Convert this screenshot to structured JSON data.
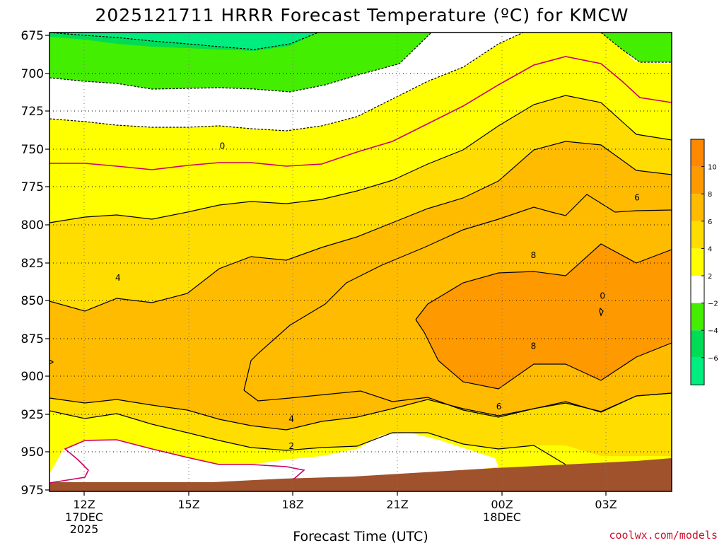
{
  "chart_data": {
    "type": "time-height contour (filled)",
    "title": "2025121711 HRRR Forecast Temperature (ºC) for KMCW",
    "xlabel": "Forecast Time (UTC)",
    "ylabel": "",
    "x_ticks": [
      {
        "label": "12Z",
        "sub": [
          "17DEC",
          "2025"
        ]
      },
      {
        "label": "15Z",
        "sub": []
      },
      {
        "label": "18Z",
        "sub": []
      },
      {
        "label": "21Z",
        "sub": []
      },
      {
        "label": "00Z",
        "sub": [
          "18DEC"
        ]
      },
      {
        "label": "03Z",
        "sub": []
      }
    ],
    "x_range_hours": [
      11.0,
      29.0
    ],
    "y_ticks": [
      "675",
      "700",
      "725",
      "750",
      "775",
      "800",
      "825",
      "850",
      "875",
      "900",
      "925",
      "950",
      "975"
    ],
    "y_range": [
      675,
      975
    ],
    "y_inverted": true,
    "grid": "dotted",
    "fill_colors": {
      "lt_m6": "#00ee80",
      "m6_m4": "#00dd55",
      "m4_m2": "#44ee00",
      "m2_2": "#ffffff",
      "2_4": "#ffff00",
      "4_6": "#ffdd00",
      "6_8": "#ffbb00",
      "8_10": "#ff9900",
      "ground": "#a0522d"
    },
    "zero_line_color": "#cc0066",
    "contour_labels": [
      {
        "text": "0",
        "hour": 16.0,
        "level": 748
      },
      {
        "text": "4",
        "hour": 12.98,
        "level": 835
      },
      {
        "text": "4",
        "hour": 18.0,
        "level": 928
      },
      {
        "text": "2",
        "hour": 18.0,
        "level": 946
      },
      {
        "text": "6",
        "hour": 24.0,
        "level": 920
      },
      {
        "text": "8",
        "hour": 25.0,
        "level": 820
      },
      {
        "text": "8",
        "hour": 25.0,
        "level": 880
      },
      {
        "text": "0",
        "hour": 27.0,
        "level": 847
      },
      {
        "text": "6",
        "hour": 28.0,
        "level": 782
      }
    ],
    "colorbar": {
      "ticks": [
        "10",
        "8",
        "6",
        "4",
        "2",
        "−2",
        "−4",
        "−6"
      ],
      "colors": [
        "#ff8800",
        "#ff9900",
        "#ffbb00",
        "#ffdd00",
        "#ffff00",
        "#ffffff",
        "#44ee00",
        "#00dd55",
        "#00ee80"
      ]
    },
    "credit": "coolwx.com/models"
  }
}
